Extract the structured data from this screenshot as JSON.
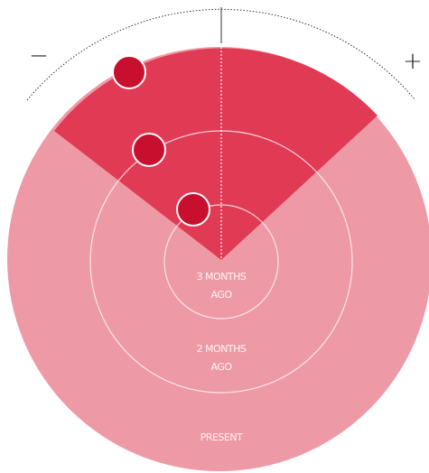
{
  "axis": {
    "minus": "−",
    "plus": "+"
  },
  "rings": [
    {
      "lines": [
        "3 MONTHS",
        "AGO"
      ]
    },
    {
      "lines": [
        "2 MONTHS",
        "AGO"
      ]
    },
    {
      "lines": [
        "PRESENT"
      ]
    }
  ]
}
